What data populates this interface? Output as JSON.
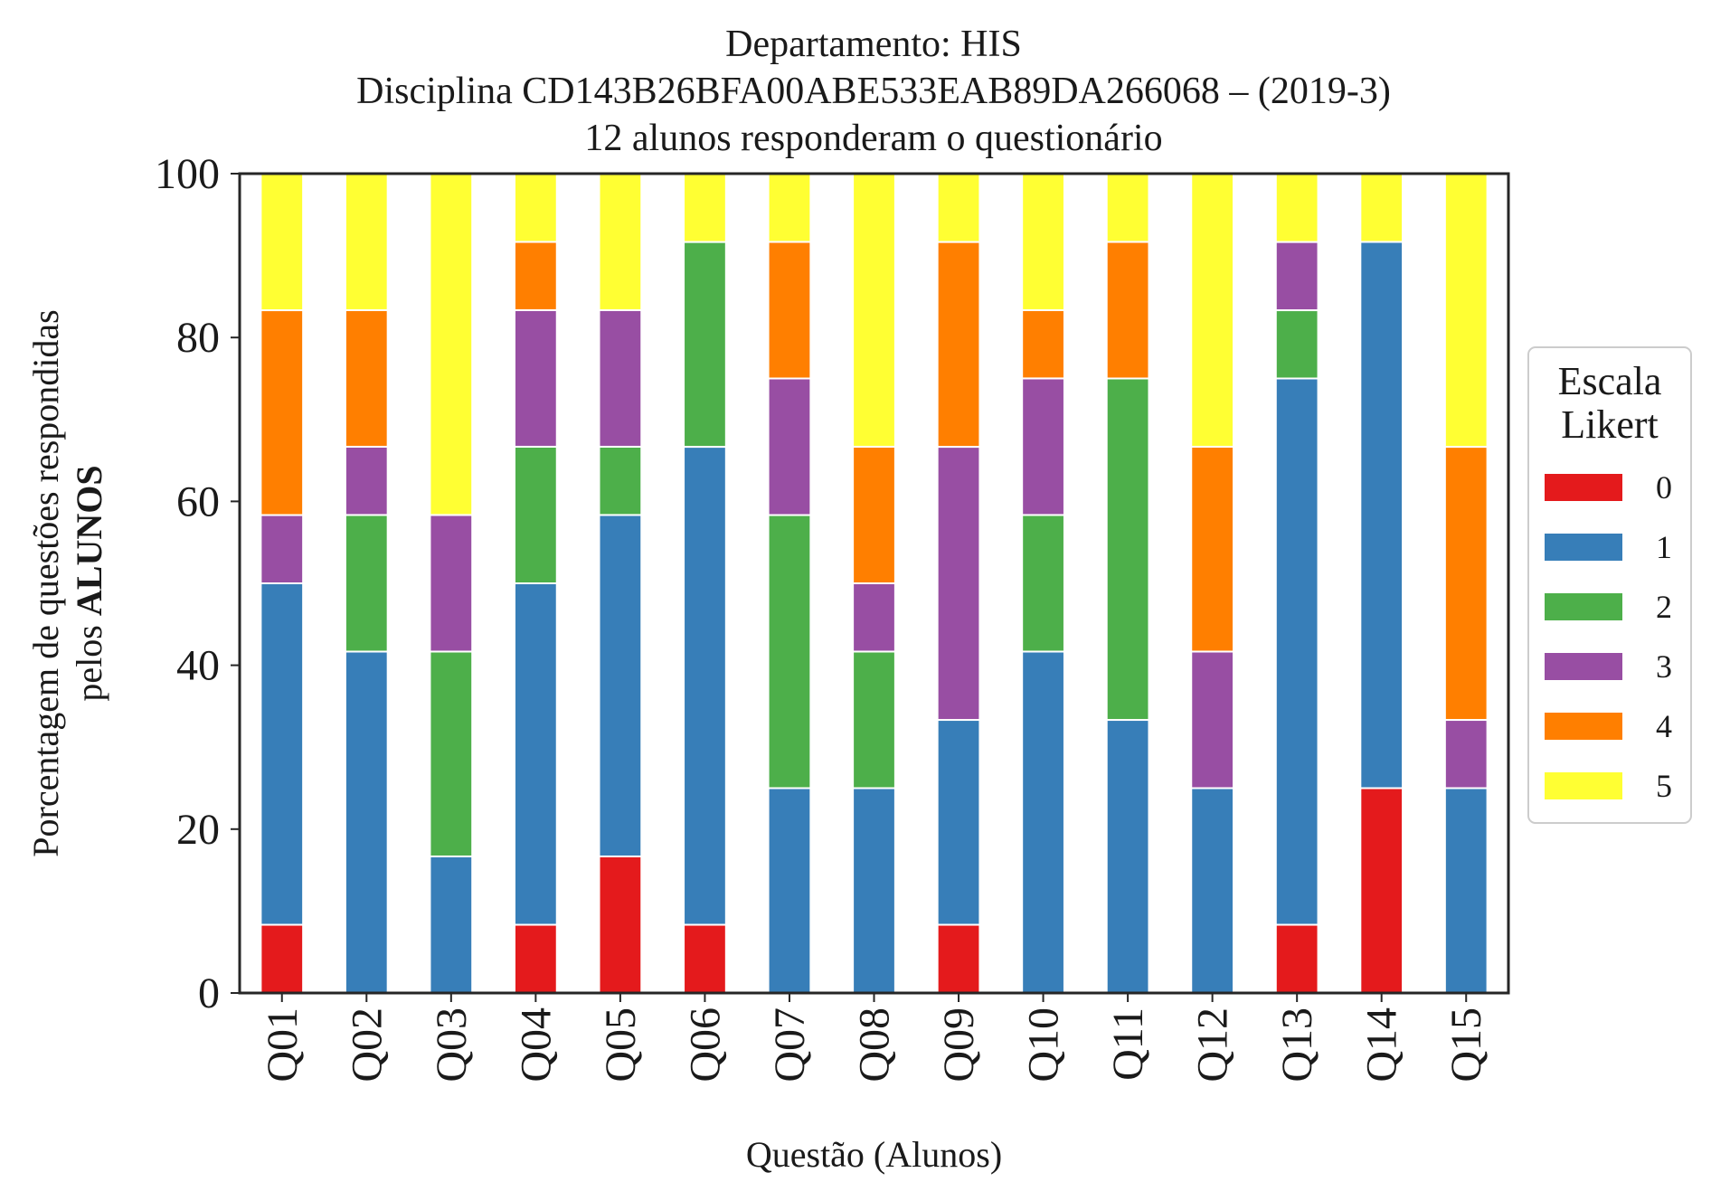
{
  "chart_data": {
    "type": "bar",
    "stacked": true,
    "title_lines": [
      "Departamento: HIS",
      "Disciplina CD143B26BFA00ABE533EAB89DA266068 – (2019-3)",
      "12 alunos responderam o questionário"
    ],
    "xlabel": "Questão (Alunos)",
    "ylabel_line1": "Porcentagem de questões respondidas",
    "ylabel_line2_prefix": "pelos ",
    "ylabel_line2_bold": "ALUNOS",
    "ylim": [
      0,
      100
    ],
    "yticks": [
      "0",
      "20",
      "40",
      "60",
      "80",
      "100"
    ],
    "grid": false,
    "legend_placement": "right-outside",
    "legend_title_lines": [
      "Escala",
      "Likert"
    ],
    "categories": [
      "Q01",
      "Q02",
      "Q03",
      "Q04",
      "Q05",
      "Q06",
      "Q07",
      "Q08",
      "Q09",
      "Q10",
      "Q11",
      "Q12",
      "Q13",
      "Q14",
      "Q15"
    ],
    "series": [
      {
        "name": "0",
        "color": "#e41a1c",
        "values": [
          8.33,
          0,
          0,
          8.33,
          16.67,
          8.33,
          0,
          0,
          8.33,
          0,
          0,
          0,
          8.33,
          25,
          0
        ]
      },
      {
        "name": "1",
        "color": "#377eb8",
        "values": [
          41.67,
          41.67,
          16.67,
          41.67,
          41.67,
          58.33,
          25,
          25,
          25,
          41.67,
          33.33,
          25,
          66.67,
          66.67,
          25
        ]
      },
      {
        "name": "2",
        "color": "#4daf4a",
        "values": [
          0,
          16.67,
          25,
          16.67,
          8.33,
          25,
          33.33,
          16.67,
          0,
          16.67,
          41.67,
          0,
          8.33,
          0,
          0
        ]
      },
      {
        "name": "3",
        "color": "#984ea3",
        "values": [
          8.33,
          8.33,
          16.67,
          16.67,
          16.67,
          0,
          16.67,
          8.33,
          33.33,
          16.67,
          0,
          16.67,
          8.33,
          0,
          8.33
        ]
      },
      {
        "name": "4",
        "color": "#ff7f00",
        "values": [
          25,
          16.67,
          0,
          8.33,
          0,
          0,
          16.67,
          16.67,
          25,
          8.33,
          16.67,
          25,
          0,
          0,
          33.33
        ]
      },
      {
        "name": "5",
        "color": "#ffff33",
        "values": [
          16.67,
          16.67,
          41.67,
          8.33,
          16.67,
          8.33,
          8.33,
          33.33,
          8.33,
          16.67,
          8.33,
          33.33,
          8.33,
          8.33,
          33.33
        ]
      }
    ]
  }
}
